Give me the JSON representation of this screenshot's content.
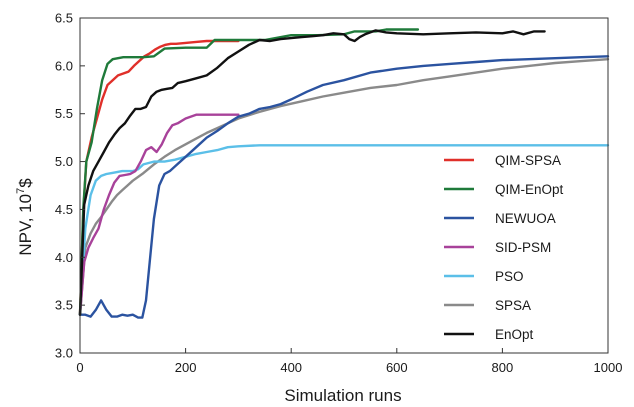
{
  "chart_data": {
    "type": "line",
    "title": "",
    "xlabel": "Simulation runs",
    "ylabel_base": "NPV, 10",
    "ylabel_sup": "7",
    "ylabel_unit": "$",
    "xlim": [
      0,
      1000
    ],
    "ylim": [
      3.0,
      6.5
    ],
    "xticks": [
      0,
      200,
      400,
      600,
      800,
      1000
    ],
    "xtick_labels": [
      "0",
      "200",
      "400",
      "600",
      "800",
      "1000"
    ],
    "yticks": [
      3.0,
      3.5,
      4.0,
      4.5,
      5.0,
      5.5,
      6.0,
      6.5
    ],
    "ytick_labels": [
      "3.0",
      "3.5",
      "4.0",
      "4.5",
      "5.0",
      "5.5",
      "6.0",
      "6.5"
    ],
    "grid": false,
    "legend_position": "bottom-right",
    "series": [
      {
        "name": "QIM-SPSA",
        "color": "#e0302a",
        "x": [
          0,
          6,
          12,
          22,
          32,
          42,
          52,
          62,
          72,
          82,
          92,
          102,
          112,
          122,
          132,
          142,
          152,
          162,
          172,
          182,
          200,
          220,
          240,
          260,
          280,
          300
        ],
        "y": [
          3.4,
          4.45,
          5.0,
          5.25,
          5.45,
          5.65,
          5.8,
          5.85,
          5.9,
          5.92,
          5.94,
          6.0,
          6.05,
          6.1,
          6.13,
          6.17,
          6.2,
          6.22,
          6.23,
          6.23,
          6.24,
          6.25,
          6.26,
          6.26,
          6.26,
          6.26
        ]
      },
      {
        "name": "QIM-EnOpt",
        "color": "#1f7a3a",
        "x": [
          0,
          6,
          12,
          22,
          32,
          42,
          52,
          62,
          72,
          82,
          92,
          105,
          120,
          140,
          160,
          200,
          240,
          255,
          270,
          300,
          350,
          400,
          450,
          500,
          520,
          560,
          580,
          600,
          620,
          640
        ],
        "y": [
          3.4,
          4.5,
          5.0,
          5.2,
          5.55,
          5.85,
          6.02,
          6.07,
          6.08,
          6.09,
          6.09,
          6.09,
          6.09,
          6.1,
          6.18,
          6.19,
          6.19,
          6.27,
          6.27,
          6.27,
          6.27,
          6.32,
          6.32,
          6.33,
          6.36,
          6.36,
          6.38,
          6.38,
          6.38,
          6.38
        ]
      },
      {
        "name": "NEWUOA",
        "color": "#2b53a0",
        "x": [
          0,
          10,
          20,
          30,
          40,
          50,
          60,
          70,
          80,
          90,
          100,
          110,
          118,
          125,
          132,
          140,
          150,
          160,
          170,
          180,
          200,
          220,
          240,
          260,
          280,
          300,
          320,
          340,
          360,
          380,
          400,
          430,
          460,
          500,
          550,
          600,
          650,
          700,
          750,
          800,
          850,
          900,
          950,
          1000
        ],
        "y": [
          3.4,
          3.4,
          3.38,
          3.45,
          3.55,
          3.45,
          3.38,
          3.38,
          3.4,
          3.39,
          3.4,
          3.37,
          3.37,
          3.55,
          3.95,
          4.4,
          4.75,
          4.87,
          4.9,
          4.95,
          5.05,
          5.15,
          5.25,
          5.32,
          5.4,
          5.47,
          5.5,
          5.55,
          5.57,
          5.6,
          5.65,
          5.73,
          5.8,
          5.85,
          5.93,
          5.97,
          6.0,
          6.02,
          6.04,
          6.06,
          6.07,
          6.08,
          6.09,
          6.1
        ]
      },
      {
        "name": "SID-PSM",
        "color": "#a8429a",
        "x": [
          0,
          8,
          16,
          25,
          35,
          45,
          55,
          65,
          75,
          85,
          95,
          105,
          115,
          125,
          135,
          145,
          155,
          165,
          175,
          185,
          200,
          220,
          240,
          260,
          280,
          300
        ],
        "y": [
          3.4,
          3.95,
          4.1,
          4.2,
          4.3,
          4.5,
          4.65,
          4.78,
          4.85,
          4.86,
          4.87,
          4.9,
          5.0,
          5.12,
          5.15,
          5.1,
          5.18,
          5.3,
          5.38,
          5.4,
          5.45,
          5.49,
          5.49,
          5.49,
          5.49,
          5.49
        ]
      },
      {
        "name": "PSO",
        "color": "#5bbfe8",
        "x": [
          0,
          10,
          20,
          30,
          40,
          50,
          60,
          70,
          80,
          90,
          100,
          110,
          120,
          140,
          160,
          180,
          200,
          220,
          240,
          260,
          280,
          300,
          340,
          400,
          500,
          600,
          700,
          800,
          900,
          1000
        ],
        "y": [
          3.4,
          4.3,
          4.65,
          4.8,
          4.85,
          4.87,
          4.88,
          4.89,
          4.9,
          4.9,
          4.9,
          4.92,
          4.97,
          5.0,
          5.0,
          5.02,
          5.05,
          5.08,
          5.1,
          5.12,
          5.15,
          5.16,
          5.17,
          5.17,
          5.17,
          5.17,
          5.17,
          5.17,
          5.17,
          5.17
        ]
      },
      {
        "name": "SPSA",
        "color": "#8a8a8a",
        "x": [
          0,
          10,
          20,
          30,
          40,
          50,
          60,
          70,
          80,
          90,
          100,
          120,
          140,
          160,
          180,
          200,
          220,
          240,
          260,
          280,
          300,
          340,
          380,
          420,
          460,
          500,
          550,
          600,
          650,
          700,
          750,
          800,
          850,
          900,
          950,
          1000
        ],
        "y": [
          3.4,
          4.1,
          4.25,
          4.35,
          4.42,
          4.5,
          4.58,
          4.65,
          4.7,
          4.75,
          4.8,
          4.88,
          4.97,
          5.05,
          5.12,
          5.18,
          5.24,
          5.3,
          5.35,
          5.4,
          5.45,
          5.52,
          5.58,
          5.63,
          5.68,
          5.72,
          5.77,
          5.8,
          5.85,
          5.89,
          5.93,
          5.97,
          6.0,
          6.03,
          6.05,
          6.07
        ]
      },
      {
        "name": "EnOpt",
        "color": "#111111",
        "x": [
          0,
          8,
          16,
          25,
          35,
          45,
          55,
          65,
          75,
          85,
          95,
          105,
          115,
          125,
          135,
          145,
          155,
          165,
          175,
          185,
          200,
          220,
          240,
          260,
          280,
          300,
          320,
          340,
          360,
          380,
          400,
          420,
          440,
          460,
          480,
          500,
          510,
          520,
          530,
          540,
          560,
          580,
          600,
          650,
          700,
          750,
          800,
          820,
          840,
          860,
          880
        ],
        "y": [
          3.4,
          4.55,
          4.75,
          4.9,
          5.0,
          5.1,
          5.2,
          5.28,
          5.35,
          5.4,
          5.48,
          5.55,
          5.55,
          5.57,
          5.68,
          5.73,
          5.75,
          5.76,
          5.77,
          5.82,
          5.84,
          5.87,
          5.9,
          5.98,
          6.08,
          6.15,
          6.22,
          6.27,
          6.26,
          6.28,
          6.29,
          6.3,
          6.31,
          6.32,
          6.34,
          6.33,
          6.28,
          6.26,
          6.3,
          6.33,
          6.37,
          6.35,
          6.34,
          6.33,
          6.34,
          6.35,
          6.34,
          6.36,
          6.33,
          6.36,
          6.36
        ]
      }
    ]
  }
}
